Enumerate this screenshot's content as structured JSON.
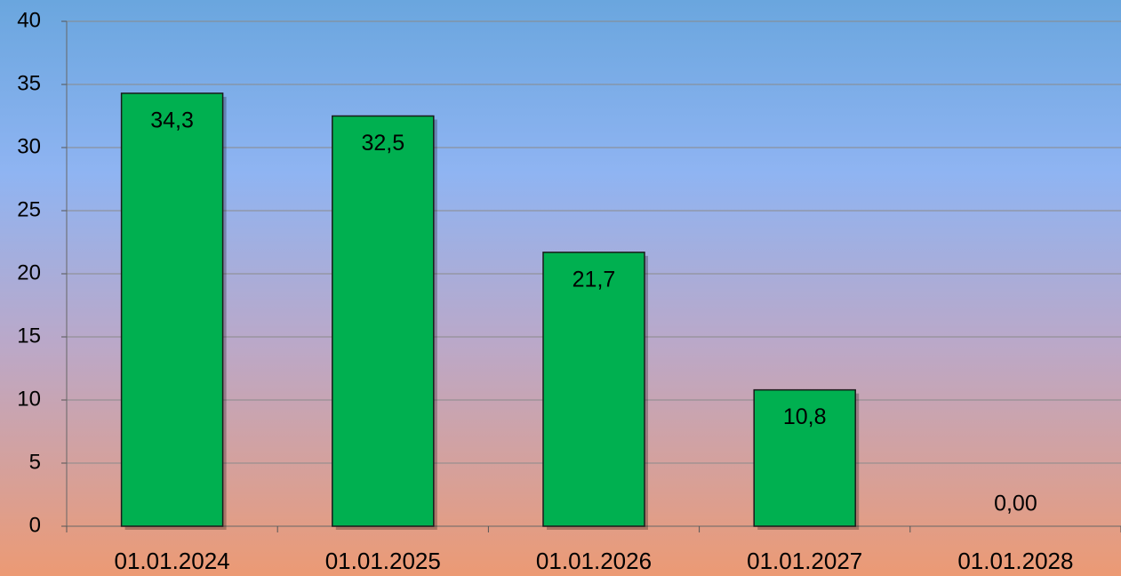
{
  "chart_data": {
    "type": "bar",
    "categories": [
      "01.01.2024",
      "01.01.2025",
      "01.01.2026",
      "01.01.2027",
      "01.01.2028"
    ],
    "values": [
      34.3,
      32.5,
      21.7,
      10.8,
      0
    ],
    "value_labels": [
      "34,3",
      "32,5",
      "21,7",
      "10,8",
      "0,00"
    ],
    "color": "#00b050",
    "ylim": [
      0,
      40
    ],
    "yticks": [
      0,
      5,
      10,
      15,
      20,
      25,
      30,
      35,
      40
    ],
    "grid": true
  }
}
